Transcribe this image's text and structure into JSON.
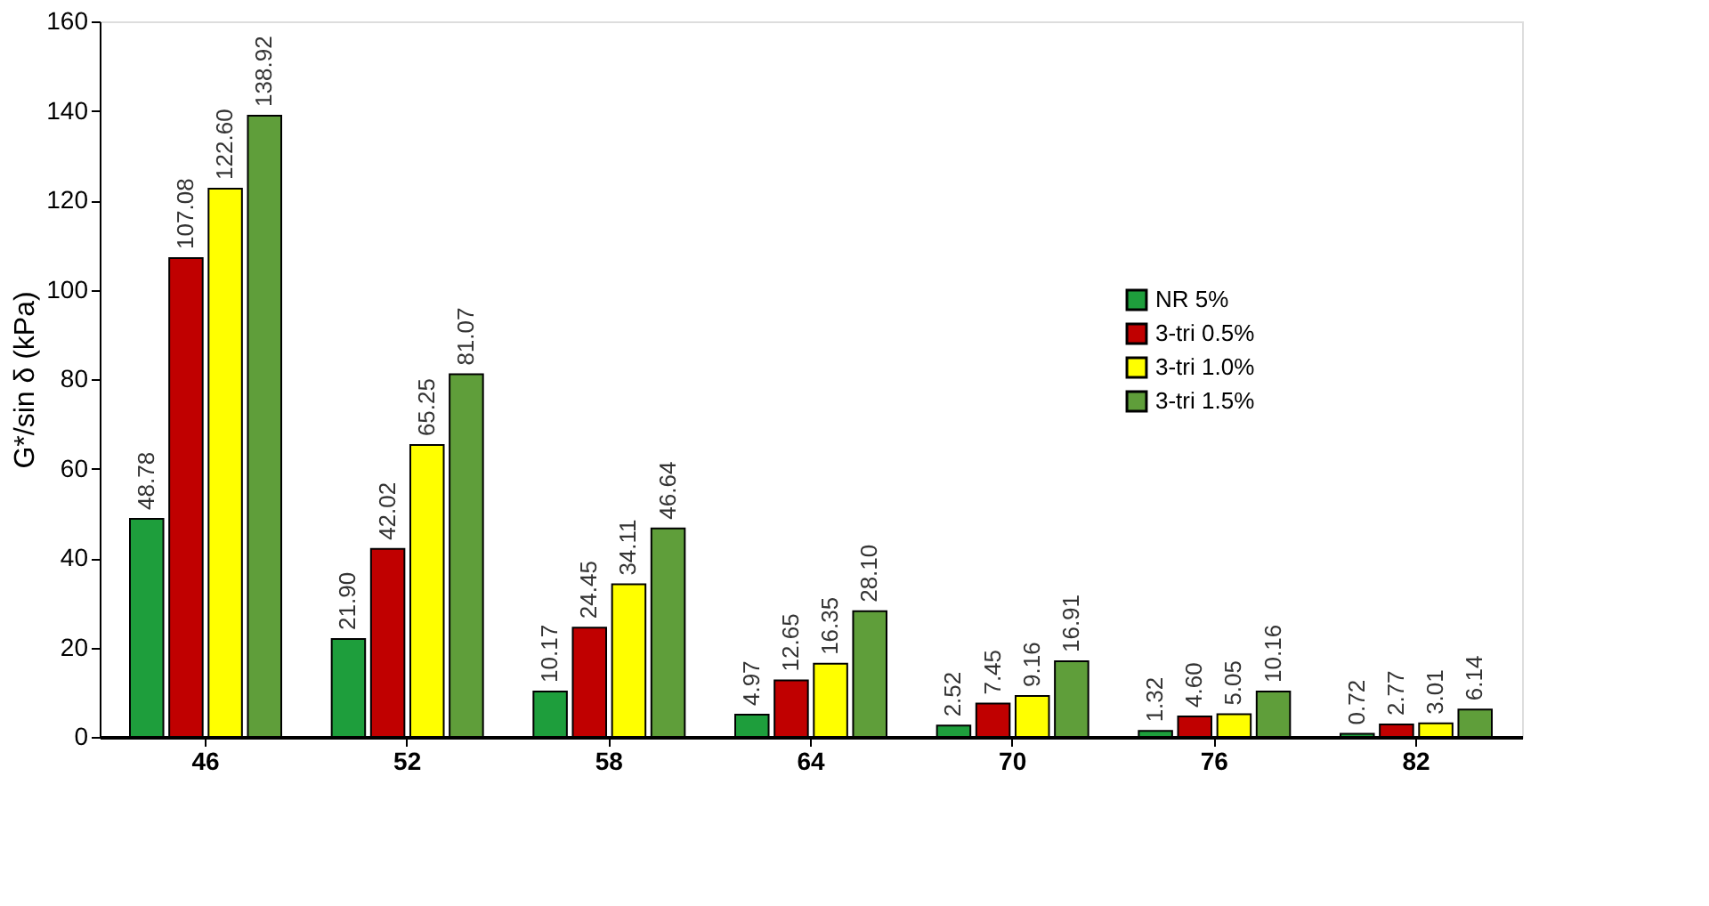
{
  "chart_data": {
    "type": "bar",
    "ylabel": "G*/sin δ (kPa)",
    "categories": [
      "46",
      "52",
      "58",
      "64",
      "70",
      "76",
      "82"
    ],
    "ylim": [
      0,
      160
    ],
    "yticks": [
      0,
      20,
      40,
      60,
      80,
      100,
      120,
      140,
      160
    ],
    "grid": false,
    "legend": "top right",
    "series": [
      {
        "name": "NR 5%",
        "color": "#1e9e3c",
        "values": [
          48.78,
          21.9,
          10.17,
          4.97,
          2.52,
          1.32,
          0.72
        ],
        "value_labels": [
          "48.78",
          "21.90",
          "10.17",
          "4.97",
          "2.52",
          "1.32",
          "0.72"
        ]
      },
      {
        "name": "3-tri 0.5%",
        "color": "#c00000",
        "values": [
          107.08,
          42.02,
          24.45,
          12.65,
          7.45,
          4.6,
          2.77
        ],
        "value_labels": [
          "107.08",
          "42.02",
          "24.45",
          "12.65",
          "7.45",
          "4.60",
          "2.77"
        ]
      },
      {
        "name": "3-tri 1.0%",
        "color": "#ffff00",
        "values": [
          122.6,
          65.25,
          34.11,
          16.35,
          9.16,
          5.05,
          3.01
        ],
        "value_labels": [
          "122.60",
          "65.25",
          "34.11",
          "16.35",
          "9.16",
          "5.05",
          "3.01"
        ]
      },
      {
        "name": "3-tri 1.5%",
        "color": "#5f9e3a",
        "values": [
          138.92,
          81.07,
          46.64,
          28.1,
          16.91,
          10.16,
          6.14
        ],
        "value_labels": [
          "138.92",
          "81.07",
          "46.64",
          "28.10",
          "16.91",
          "10.16",
          "6.14"
        ]
      }
    ]
  }
}
